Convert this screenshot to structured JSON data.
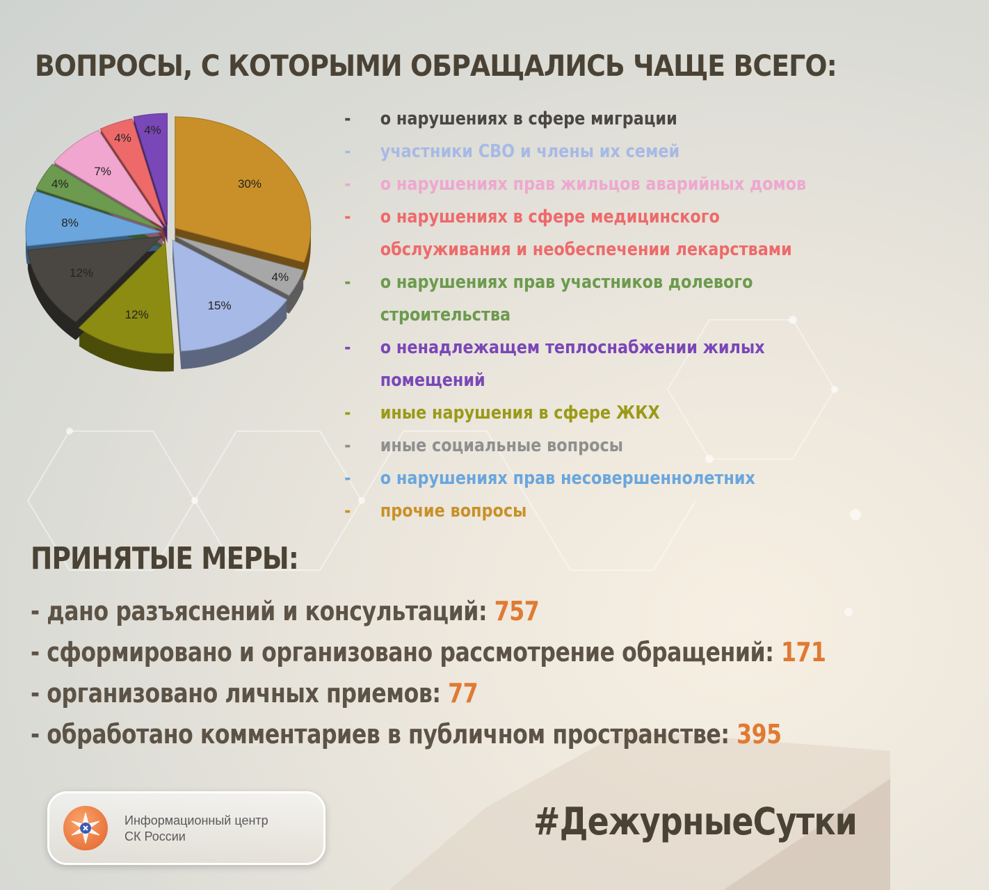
{
  "title": "ВОПРОСЫ, С КОТОРЫМИ ОБРАЩАЛИСЬ ЧАЩЕ ВСЕГО:",
  "chart_data": {
    "type": "pie",
    "title": "",
    "slices": [
      {
        "label": "прочие вопросы",
        "value": 30,
        "text": "30%",
        "color": "#c99029"
      },
      {
        "label": "иные социальные вопросы",
        "value": 4,
        "text": "4%",
        "color": "#a7a7a7"
      },
      {
        "label": "участники СВО и члены их семей",
        "value": 15,
        "text": "15%",
        "color": "#a7b9e6"
      },
      {
        "label": "иные нарушения в сфере ЖКХ",
        "value": 12,
        "text": "12%",
        "color": "#8c8c12"
      },
      {
        "label": "о нарушениях в сфере миграции",
        "value": 12,
        "text": "12%",
        "color": "#4a4742"
      },
      {
        "label": "о нарушениях прав несовершеннолетних",
        "value": 8,
        "text": "8%",
        "color": "#6aa6dd"
      },
      {
        "label": "о нарушениях прав участников долевого строительства",
        "value": 4,
        "text": "4%",
        "color": "#6c9a4e"
      },
      {
        "label": "о нарушениях прав жильцов аварийных домов",
        "value": 7,
        "text": "7%",
        "color": "#f0a6cf"
      },
      {
        "label": "о нарушениях в сфере медицинского обслуживания и необеспечении лекарствами",
        "value": 4,
        "text": "4%",
        "color": "#ee6a6a"
      },
      {
        "label": "о ненадлежащем теплоснабжении жилых помещений",
        "value": 4,
        "text": "4%",
        "color": "#7a47b8"
      }
    ]
  },
  "legend": [
    {
      "dash": "-",
      "lines": [
        "о нарушениях в сфере миграции"
      ],
      "color": "#4a4742"
    },
    {
      "dash": "-",
      "lines": [
        "участники СВО и члены их семей"
      ],
      "color": "#a7b9e6"
    },
    {
      "dash": "-",
      "lines": [
        "о нарушениях прав жильцов аварийных домов"
      ],
      "color": "#eea8cf"
    },
    {
      "dash": "-",
      "lines": [
        "о нарушениях в сфере медицинского",
        "обслуживания и необеспечении лекарствами"
      ],
      "color": "#ee6a6a"
    },
    {
      "dash": "-",
      "lines": [
        "о нарушениях прав участников долевого",
        "строительства"
      ],
      "color": "#6c9a4e"
    },
    {
      "dash": "-",
      "lines": [
        "о ненадлежащем теплоснабжении жилых",
        "помещений"
      ],
      "color": "#7a47b8"
    },
    {
      "dash": "-",
      "lines": [
        "иные нарушения в сфере ЖКХ"
      ],
      "color": "#9a9a18"
    },
    {
      "dash": "-",
      "lines": [
        "иные социальные вопросы"
      ],
      "color": "#8f8f8f"
    },
    {
      "dash": "-",
      "lines": [
        "о нарушениях прав несовершеннолетних"
      ],
      "color": "#6aa6dd"
    },
    {
      "dash": "-",
      "lines": [
        "прочие вопросы"
      ],
      "color": "#c99029"
    }
  ],
  "measures_title": "ПРИНЯТЫЕ МЕРЫ:",
  "measures": [
    {
      "text": "- дано разъяснений и консультаций: ",
      "value": "757"
    },
    {
      "text": "- сформировано и организовано рассмотрение обращений: ",
      "value": "171"
    },
    {
      "text": "- организовано личных приемов: ",
      "value": "77"
    },
    {
      "text": "- обработано комментариев в публичном пространстве: ",
      "value": "395"
    }
  ],
  "logo": {
    "icon": "emblem-icon",
    "line1": "Информационный центр",
    "line2": "СК России"
  },
  "hashtag": "#ДежурныеСутки"
}
